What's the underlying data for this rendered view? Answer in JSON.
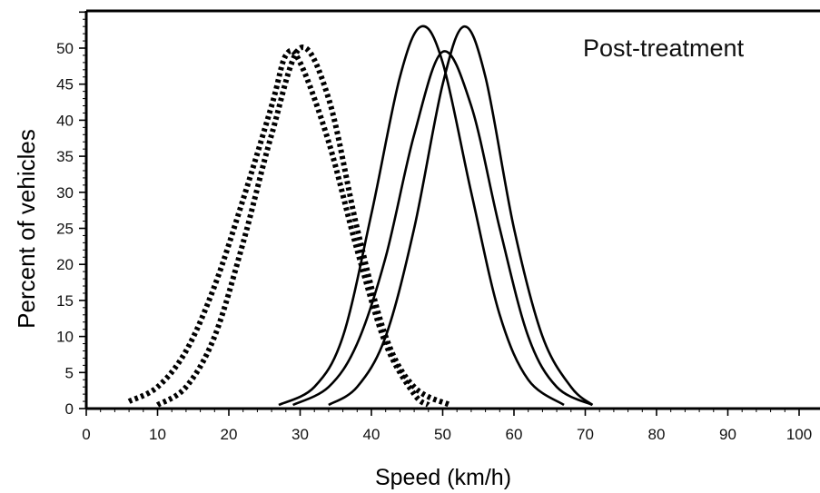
{
  "chart_data": {
    "type": "line",
    "annotation": "Post-treatment",
    "xlabel": "Speed (km/h)",
    "ylabel": "Percent of vehicles",
    "xlim": [
      0,
      100
    ],
    "ylim": [
      0,
      55
    ],
    "xticks": [
      0,
      10,
      20,
      30,
      40,
      50,
      60,
      70,
      80,
      90,
      100
    ],
    "yticks": [
      0,
      5,
      10,
      15,
      20,
      25,
      30,
      35,
      40,
      45,
      50
    ],
    "grid": false,
    "legend": "none",
    "series": [
      {
        "style": "dotted",
        "color": "#000000",
        "x": [
          6,
          10,
          14,
          18,
          22,
          26,
          28,
          30,
          34,
          38,
          42,
          46,
          48
        ],
        "y": [
          1,
          3,
          8,
          17,
          29,
          42,
          49,
          48,
          37,
          22,
          9,
          2,
          0.5
        ]
      },
      {
        "style": "dotted",
        "color": "#000000",
        "x": [
          10,
          14,
          18,
          22,
          26,
          30,
          34,
          38,
          42,
          46,
          51
        ],
        "y": [
          0.5,
          3,
          10,
          23,
          38,
          50,
          43,
          25,
          10,
          3,
          0.5
        ]
      },
      {
        "style": "solid",
        "color": "#000000",
        "x": [
          27,
          32,
          36,
          40,
          44,
          47,
          50,
          54,
          58,
          62,
          67
        ],
        "y": [
          0.5,
          3,
          10,
          27,
          46,
          53,
          48,
          30,
          13,
          4,
          0.5
        ]
      },
      {
        "style": "solid",
        "color": "#000000",
        "x": [
          29,
          34,
          38,
          42,
          46,
          50,
          54,
          58,
          62,
          66,
          71
        ],
        "y": [
          0.5,
          3,
          9,
          21,
          38,
          49.5,
          42,
          25,
          10,
          3,
          0.5
        ]
      },
      {
        "style": "solid",
        "color": "#000000",
        "x": [
          34,
          38,
          42,
          46,
          50,
          53,
          56,
          60,
          64,
          68,
          71
        ],
        "y": [
          0.5,
          3,
          10,
          25,
          45,
          53,
          46,
          25,
          10,
          3,
          0.5
        ]
      }
    ]
  }
}
